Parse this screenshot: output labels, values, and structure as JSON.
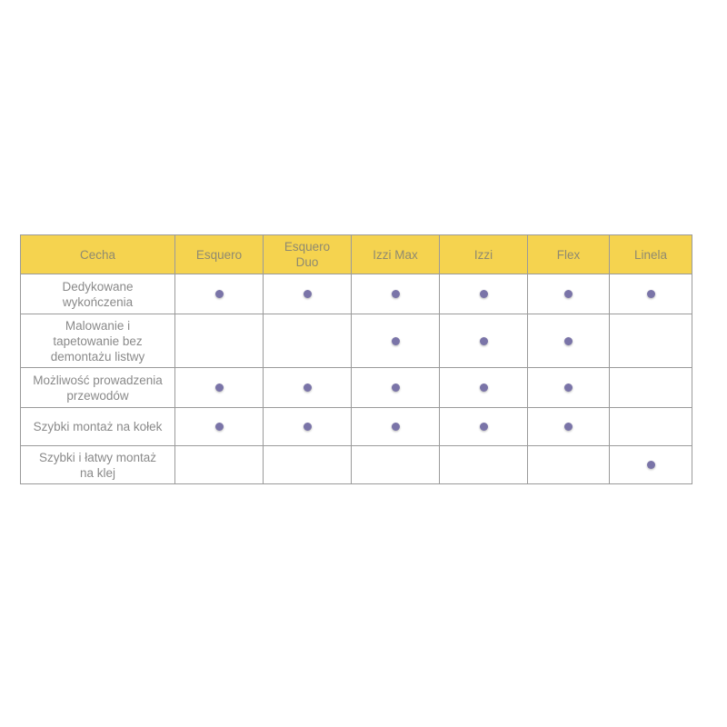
{
  "colors": {
    "header_bg": "#f5d34f",
    "dot": "#7a74a8",
    "border": "#9a9a9a"
  },
  "table": {
    "headers": [
      "Cecha",
      "Esquero",
      "Esquero Duo",
      "Izzi Max",
      "Izzi",
      "Flex",
      "Linela"
    ],
    "rows": [
      {
        "feature": "Dedykowane wykończenia",
        "marks": [
          true,
          true,
          true,
          true,
          true,
          true
        ]
      },
      {
        "feature": "Malowanie i tapetowanie bez demontażu listwy",
        "marks": [
          false,
          false,
          true,
          true,
          true,
          false
        ]
      },
      {
        "feature": "Możliwość prowadzenia przewodów",
        "marks": [
          true,
          true,
          true,
          true,
          true,
          false
        ]
      },
      {
        "feature": "Szybki montaż na kołek",
        "marks": [
          true,
          true,
          true,
          true,
          true,
          false
        ]
      },
      {
        "feature": "Szybki i łatwy montaż na klej",
        "marks": [
          false,
          false,
          false,
          false,
          false,
          true
        ]
      }
    ]
  }
}
